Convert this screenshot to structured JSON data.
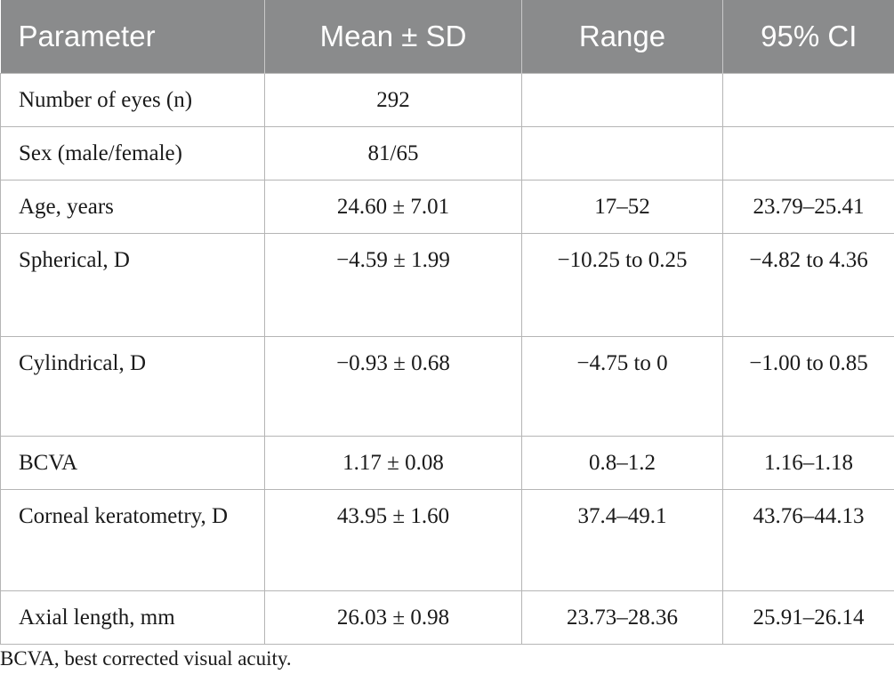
{
  "table": {
    "headers": [
      "Parameter",
      "Mean ± SD",
      "Range",
      "95% CI"
    ],
    "rows": [
      [
        "Number of eyes (n)",
        "292",
        "",
        ""
      ],
      [
        "Sex (male/female)",
        "81/65",
        "",
        ""
      ],
      [
        "Age, years",
        "24.60 ± 7.01",
        "17–52",
        "23.79–25.41"
      ],
      [
        "Spherical, D",
        "−4.59 ± 1.99",
        "−10.25 to 0.25",
        "−4.82 to 4.36"
      ],
      [
        "Cylindrical, D",
        "−0.93 ± 0.68",
        "−4.75 to 0",
        "−1.00 to 0.85"
      ],
      [
        "BCVA",
        "1.17 ± 0.08",
        "0.8–1.2",
        "1.16–1.18"
      ],
      [
        "Corneal keratometry, D",
        "43.95 ± 1.60",
        "37.4–49.1",
        "43.76–44.13"
      ],
      [
        "Axial length, mm",
        "26.03 ± 0.98",
        "23.73–28.36",
        "25.91–26.14"
      ]
    ]
  },
  "footnote": "BCVA, best corrected visual acuity."
}
